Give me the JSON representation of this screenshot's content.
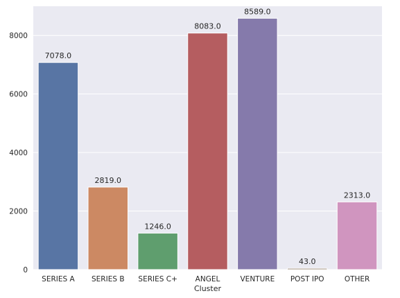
{
  "chart_data": {
    "type": "bar",
    "categories": [
      "SERIES A",
      "SERIES B",
      "SERIES C+",
      "ANGEL",
      "VENTURE",
      "POST IPO",
      "OTHER"
    ],
    "values": [
      7078.0,
      2819.0,
      1246.0,
      8083.0,
      8589.0,
      43.0,
      2313.0
    ],
    "data_labels": [
      "7078.0",
      "2819.0",
      "1246.0",
      "8083.0",
      "8589.0",
      "43.0",
      "2313.0"
    ],
    "colors": [
      "#5875a4",
      "#cc8963",
      "#5f9e6e",
      "#b55d60",
      "#857aab",
      "#8d7866",
      "#d095bf"
    ],
    "title": "",
    "xlabel": "Cluster",
    "ylabel": "",
    "ylim": [
      0,
      9000
    ],
    "yticks": [
      0,
      2000,
      4000,
      6000,
      8000
    ],
    "ytick_labels": [
      "0",
      "2000",
      "4000",
      "6000",
      "8000"
    ],
    "grid": true,
    "background": "#eaeaf2"
  }
}
